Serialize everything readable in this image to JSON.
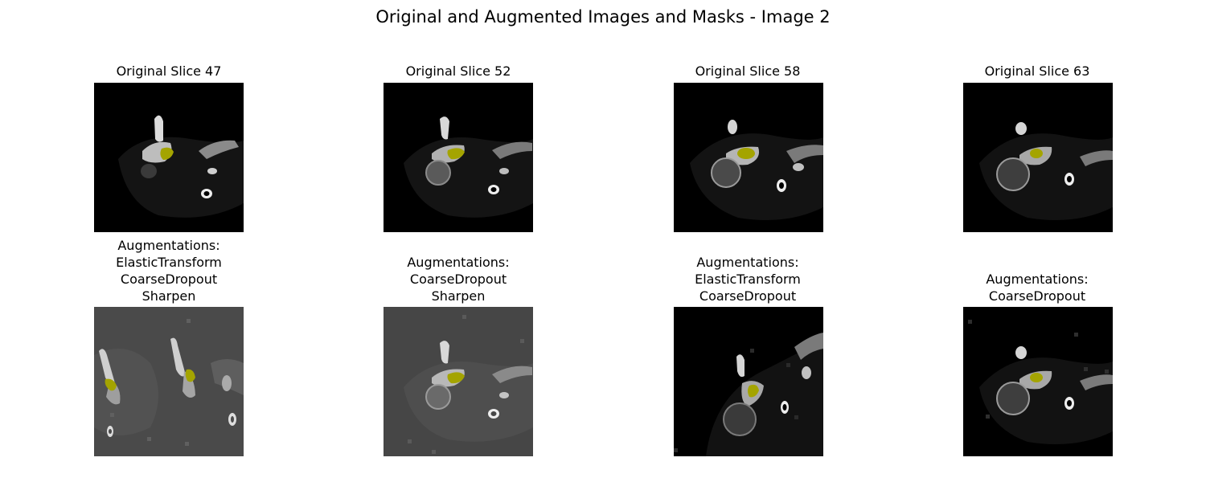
{
  "figure": {
    "title": "Original and Augmented Images and Masks - Image 2"
  },
  "panels": [
    {
      "title": "Original Slice 47",
      "kind": "original",
      "background": "#000000",
      "image": "ct-slice",
      "mask_color": "#a4a400"
    },
    {
      "title": "Original Slice 52",
      "kind": "original",
      "background": "#000000",
      "image": "ct-slice",
      "mask_color": "#a4a400"
    },
    {
      "title": "Original Slice 58",
      "kind": "original",
      "background": "#000000",
      "image": "ct-slice",
      "mask_color": "#a4a400"
    },
    {
      "title": "Original Slice 63",
      "kind": "original",
      "background": "#000000",
      "image": "ct-slice",
      "mask_color": "#a4a400"
    },
    {
      "title": "Augmentations:",
      "augmentations": [
        "ElasticTransform",
        "CoarseDropout",
        "Sharpen"
      ],
      "kind": "augmented",
      "background": "#4a4a4a",
      "image": "ct-slice",
      "mask_color": "#a4a400"
    },
    {
      "title": "Augmentations:",
      "augmentations": [
        "CoarseDropout",
        "Sharpen"
      ],
      "kind": "augmented",
      "background": "#464646",
      "image": "ct-slice",
      "mask_color": "#a4a400"
    },
    {
      "title": "Augmentations:",
      "augmentations": [
        "ElasticTransform",
        "CoarseDropout"
      ],
      "kind": "augmented",
      "background": "#000000",
      "image": "ct-slice",
      "mask_color": "#a4a400"
    },
    {
      "title": "Augmentations:",
      "augmentations": [
        "CoarseDropout"
      ],
      "kind": "augmented",
      "background": "#000000",
      "image": "ct-slice",
      "mask_color": "#a4a400"
    }
  ]
}
